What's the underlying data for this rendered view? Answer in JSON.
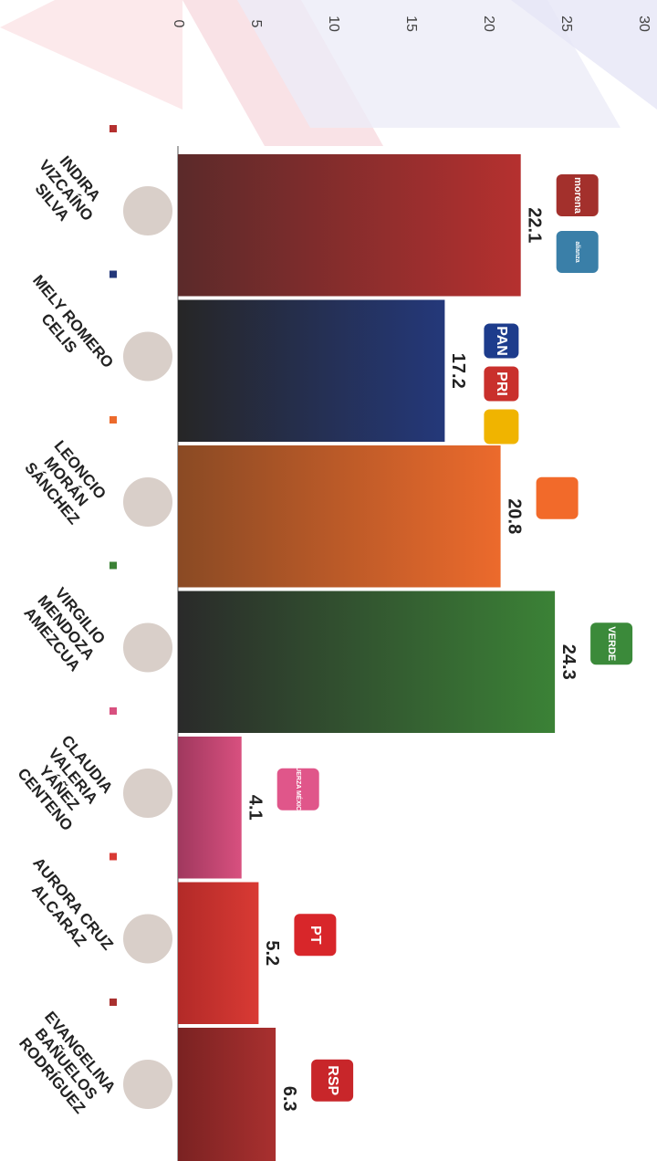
{
  "chart_data": {
    "type": "bar",
    "orientation": "horizontal",
    "categories": [
      "INDIRA VIZCAÍNO SILVA",
      "MELY ROMERO CELIS",
      "LEONCIO MORÁN SÁNCHEZ",
      "VIRGILIO MENDOZA AMEZCUA",
      "CLAUDIA VALERIA YÁÑEZ CENTENO",
      "AURORA CRUZ ALCARAZ",
      "EVANGELINA BAÑUELOS RODRÍGUEZ"
    ],
    "values": [
      22.1,
      17.2,
      20.8,
      24.3,
      4.1,
      5.2,
      6.3
    ],
    "colors": [
      "#b5302f",
      "#24387a",
      "#ec6a2c",
      "#3b8236",
      "#d8507f",
      "#d93a34",
      "#a9302f"
    ],
    "gradient_from": [
      "#5b2a2a",
      "#262626",
      "#8a4a24",
      "#2a2a2a",
      "#a0385e",
      "#b22a28",
      "#7a2222"
    ],
    "logos": [
      [
        {
          "label": "morena",
          "color": "#a3302c"
        },
        {
          "label": "alianza",
          "color": "#3a7fa8"
        }
      ],
      [
        {
          "label": "PAN",
          "color": "#1d3c8c"
        },
        {
          "label": "PRI",
          "color": "#c9302c"
        },
        {
          "color": "#f0b400"
        }
      ],
      [
        {
          "color": "#f26a2a"
        }
      ],
      [
        {
          "label": "VERDE",
          "color": "#3b8a3a"
        }
      ],
      [
        {
          "label": "FUERZA MÉXICO",
          "color": "#e0568a"
        }
      ],
      [
        {
          "label": "PT",
          "color": "#d8262a"
        }
      ],
      [
        {
          "label": "RSP",
          "color": "#c8262a"
        }
      ]
    ],
    "xlim": [
      0,
      30
    ],
    "xticks": [
      0,
      5,
      10,
      15,
      20,
      25,
      30
    ],
    "grid": false
  }
}
